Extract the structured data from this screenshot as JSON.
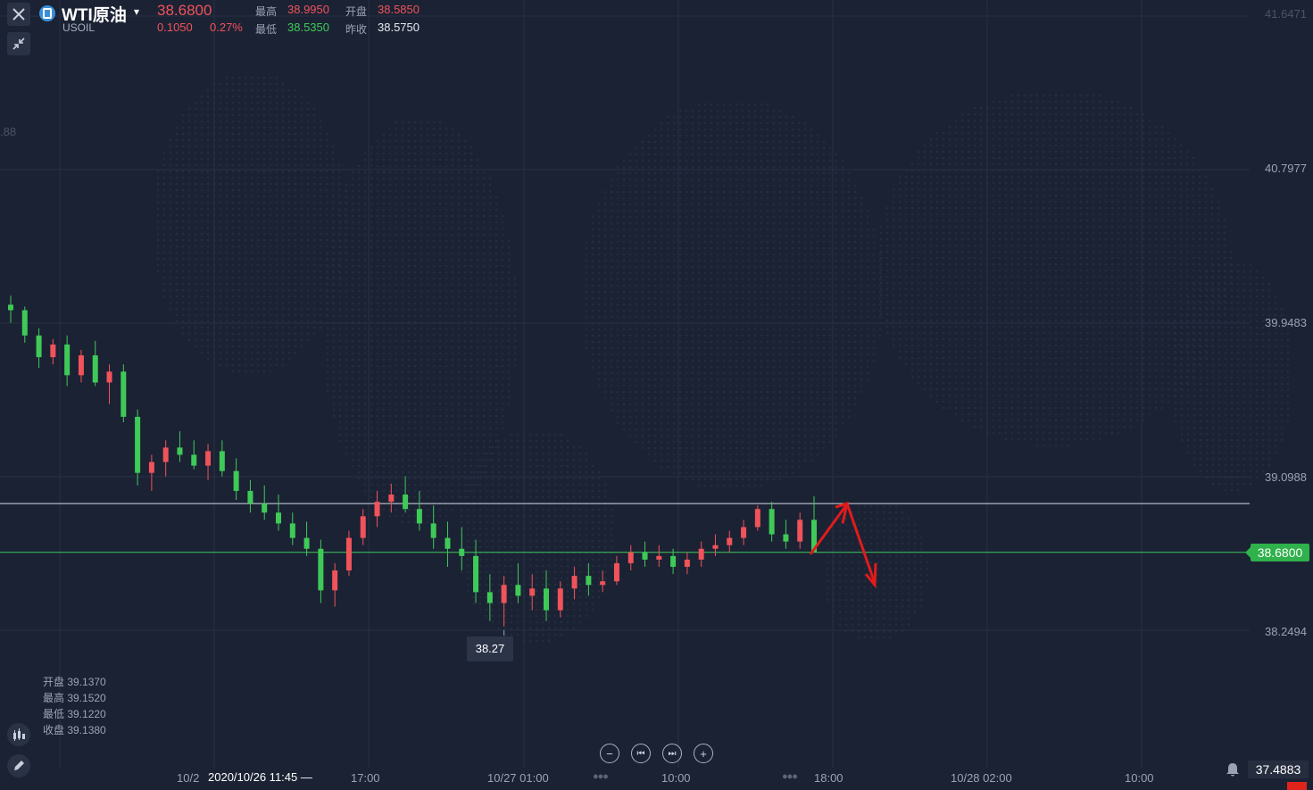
{
  "header": {
    "symbol_name": "WTI原油",
    "symbol_code": "USOIL",
    "last_price": "38.6800",
    "change": "0.1050",
    "change_pct": "0.27%",
    "high_label": "最高",
    "high_value": "38.9950",
    "open_label": "开盘",
    "open_value": "38.5850",
    "low_label": "最低",
    "low_value": "38.5350",
    "prev_close_label": "昨收",
    "prev_close_value": "38.5750"
  },
  "legend": {
    "lines": [
      "开盘 39.1370",
      "最高 39.1520",
      "最低 39.1220",
      "收盘 39.1380"
    ]
  },
  "axis": {
    "price_labels": [
      "41.6471",
      "40.7977",
      "39.9483",
      "39.0988",
      "38.2494"
    ],
    "cut_label": ".88",
    "time_labels": [
      "10/2",
      "17:00",
      "10/27 01:00",
      "10:00",
      "18:00",
      "10/28 02:00",
      "10:00"
    ],
    "crosshair_time": "2020/10/26 11:45 —",
    "current_price_tag": "38.6800",
    "low_marker": "38.27",
    "bottom_right_value": "37.4883"
  },
  "nav": {
    "zoom_out": "−",
    "prev": "⏮",
    "next": "⏭",
    "zoom_in": "+",
    "dots": "●●●"
  },
  "colors": {
    "background": "#1b2234",
    "up": "#f0535a",
    "down": "#3fca58",
    "annotation": "#e11b1b",
    "price_line": "#3fca58",
    "level_line": "#d7dbe3"
  },
  "icons": {
    "close": "close-icon",
    "collapse": "collapse-arrows-icon",
    "indicator": "candlestick-indicator-icon",
    "draw": "pencil-icon",
    "alert": "bell-icon",
    "logo": "oil-logo-icon"
  },
  "chart_data": {
    "type": "candlestick",
    "symbol": "USOIL",
    "ylim": [
      37.4883,
      41.6471
    ],
    "y_ticks": [
      38.2494,
      39.0988,
      39.9483,
      40.7977,
      41.6471
    ],
    "x_ticks": [
      "10/2",
      "17:00",
      "10/27 01:00",
      "10:00",
      "18:00",
      "10/28 02:00",
      "10:00"
    ],
    "horizontal_lines": [
      {
        "value": 38.95,
        "color": "white"
      },
      {
        "value": 38.68,
        "color": "green"
      }
    ],
    "min_marker": 38.27,
    "annotation": "red arrows drawn after the last candle: one pointing up, then one pointing down",
    "candles": [
      [
        40.05,
        40.1,
        39.95,
        40.02
      ],
      [
        40.02,
        40.04,
        39.84,
        39.88
      ],
      [
        39.88,
        39.92,
        39.7,
        39.76
      ],
      [
        39.76,
        39.86,
        39.72,
        39.83
      ],
      [
        39.83,
        39.88,
        39.6,
        39.66
      ],
      [
        39.66,
        39.8,
        39.62,
        39.77
      ],
      [
        39.77,
        39.85,
        39.6,
        39.62
      ],
      [
        39.62,
        39.72,
        39.5,
        39.68
      ],
      [
        39.68,
        39.72,
        39.4,
        39.43
      ],
      [
        39.43,
        39.47,
        39.05,
        39.12
      ],
      [
        39.12,
        39.22,
        39.02,
        39.18
      ],
      [
        39.18,
        39.3,
        39.1,
        39.26
      ],
      [
        39.26,
        39.35,
        39.18,
        39.22
      ],
      [
        39.22,
        39.3,
        39.14,
        39.16
      ],
      [
        39.16,
        39.28,
        39.08,
        39.24
      ],
      [
        39.24,
        39.3,
        39.1,
        39.13
      ],
      [
        39.13,
        39.2,
        38.97,
        39.02
      ],
      [
        39.02,
        39.08,
        38.9,
        38.95
      ],
      [
        38.95,
        39.05,
        38.86,
        38.9
      ],
      [
        38.9,
        39.0,
        38.8,
        38.84
      ],
      [
        38.84,
        38.9,
        38.72,
        38.76
      ],
      [
        38.76,
        38.85,
        38.66,
        38.7
      ],
      [
        38.7,
        38.75,
        38.4,
        38.47
      ],
      [
        38.47,
        38.62,
        38.38,
        38.58
      ],
      [
        38.58,
        38.8,
        38.55,
        38.76
      ],
      [
        38.76,
        38.92,
        38.72,
        38.88
      ],
      [
        38.88,
        39.02,
        38.82,
        38.96
      ],
      [
        38.96,
        39.06,
        38.9,
        39.0
      ],
      [
        39.0,
        39.1,
        38.9,
        38.92
      ],
      [
        38.92,
        39.02,
        38.8,
        38.84
      ],
      [
        38.84,
        38.94,
        38.7,
        38.76
      ],
      [
        38.76,
        38.85,
        38.6,
        38.7
      ],
      [
        38.7,
        38.82,
        38.58,
        38.66
      ],
      [
        38.66,
        38.75,
        38.4,
        38.46
      ],
      [
        38.46,
        38.56,
        38.3,
        38.4
      ],
      [
        38.4,
        38.55,
        38.27,
        38.5
      ],
      [
        38.5,
        38.62,
        38.4,
        38.44
      ],
      [
        38.44,
        38.56,
        38.36,
        38.48
      ],
      [
        38.48,
        38.58,
        38.3,
        38.36
      ],
      [
        38.36,
        38.52,
        38.32,
        38.48
      ],
      [
        38.48,
        38.6,
        38.42,
        38.55
      ],
      [
        38.55,
        38.62,
        38.44,
        38.5
      ],
      [
        38.5,
        38.58,
        38.46,
        38.52
      ],
      [
        38.52,
        38.66,
        38.5,
        38.62
      ],
      [
        38.62,
        38.72,
        38.58,
        38.68
      ],
      [
        38.68,
        38.74,
        38.6,
        38.64
      ],
      [
        38.64,
        38.72,
        38.6,
        38.66
      ],
      [
        38.66,
        38.7,
        38.56,
        38.6
      ],
      [
        38.6,
        38.68,
        38.56,
        38.64
      ],
      [
        38.64,
        38.74,
        38.6,
        38.7
      ],
      [
        38.7,
        38.78,
        38.66,
        38.72
      ],
      [
        38.72,
        38.8,
        38.68,
        38.76
      ],
      [
        38.76,
        38.86,
        38.72,
        38.82
      ],
      [
        38.82,
        38.94,
        38.8,
        38.92
      ],
      [
        38.92,
        38.96,
        38.74,
        38.78
      ],
      [
        38.78,
        38.86,
        38.7,
        38.74
      ],
      [
        38.74,
        38.9,
        38.7,
        38.86
      ],
      [
        38.86,
        38.99,
        38.68,
        38.68
      ]
    ]
  }
}
